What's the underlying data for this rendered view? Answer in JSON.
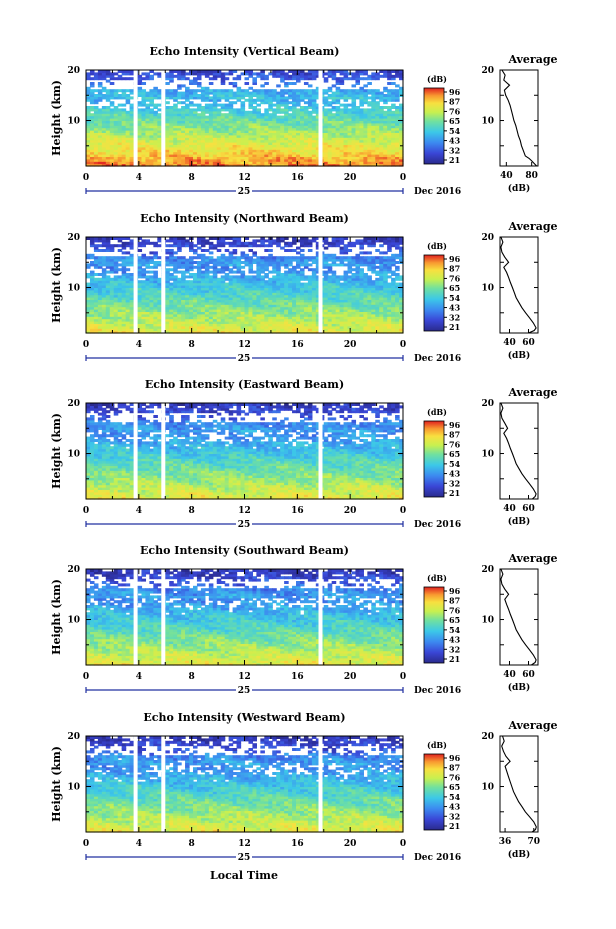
{
  "figure": {
    "x_axis_label": "Local Time",
    "date_label": "Dec 2016",
    "day_label": "25",
    "y_axis_label": "Height (km)",
    "colorbar_unit": "(dB)",
    "average_title": "Average",
    "average_xlabel": "(dB)"
  },
  "chart_data": [
    {
      "type": "heatmap",
      "title": "Echo Intensity (Vertical Beam)",
      "x_ticks": [
        "0",
        "4",
        "8",
        "12",
        "16",
        "20",
        "0"
      ],
      "x_range_hours": [
        0,
        24
      ],
      "y_ticks": [
        "10",
        "20"
      ],
      "y_range_km": [
        1,
        20
      ],
      "colorbar_ticks": [
        "96",
        "87",
        "76",
        "65",
        "54",
        "43",
        "32",
        "21"
      ],
      "colorbar_range_db": [
        21,
        96
      ],
      "data_gaps_hours": [
        3.6,
        5.7,
        17.6
      ],
      "profile": {
        "title": "Average",
        "x_ticks": [
          "40",
          "80"
        ],
        "x_range_db": [
          30,
          90
        ],
        "xlabel": "(dB)",
        "y_ticks": [
          "10",
          "20"
        ],
        "height_km": [
          1,
          1.5,
          2,
          2.5,
          3,
          4,
          5,
          6,
          7,
          8,
          9,
          10,
          11,
          12,
          13,
          14,
          15,
          16,
          17,
          18,
          19,
          20
        ],
        "values_db": [
          88,
          84,
          80,
          76,
          70,
          67,
          64,
          62,
          59,
          57,
          55,
          52,
          50,
          48,
          46,
          43,
          39,
          37,
          45,
          36,
          38,
          33
        ]
      }
    },
    {
      "type": "heatmap",
      "title": "Echo Intensity (Northward Beam)",
      "x_ticks": [
        "0",
        "4",
        "8",
        "12",
        "16",
        "20",
        "0"
      ],
      "x_range_hours": [
        0,
        24
      ],
      "y_ticks": [
        "10",
        "20"
      ],
      "y_range_km": [
        1,
        20
      ],
      "colorbar_ticks": [
        "96",
        "87",
        "76",
        "65",
        "54",
        "43",
        "32",
        "21"
      ],
      "colorbar_range_db": [
        21,
        96
      ],
      "data_gaps_hours": [
        3.6,
        5.7,
        17.6
      ],
      "profile": {
        "title": "Average",
        "x_ticks": [
          "40",
          "60"
        ],
        "x_range_db": [
          30,
          70
        ],
        "xlabel": "(dB)",
        "y_ticks": [
          "10",
          "20"
        ],
        "height_km": [
          1,
          1.5,
          2,
          3,
          4,
          5,
          6,
          7,
          8,
          9,
          10,
          11,
          12,
          13,
          14,
          15,
          16,
          17,
          18,
          19,
          20
        ],
        "values_db": [
          60,
          66,
          68,
          65,
          61,
          57,
          53,
          50,
          47,
          45,
          43,
          41,
          39,
          37,
          34,
          39,
          35,
          32,
          31,
          33,
          31
        ]
      }
    },
    {
      "type": "heatmap",
      "title": "Echo Intensity (Eastward Beam)",
      "x_ticks": [
        "0",
        "4",
        "8",
        "12",
        "16",
        "20",
        "0"
      ],
      "x_range_hours": [
        0,
        24
      ],
      "y_ticks": [
        "10",
        "20"
      ],
      "y_range_km": [
        1,
        20
      ],
      "colorbar_ticks": [
        "96",
        "87",
        "76",
        "65",
        "54",
        "43",
        "32",
        "21"
      ],
      "colorbar_range_db": [
        21,
        96
      ],
      "data_gaps_hours": [
        3.6,
        5.7,
        17.6
      ],
      "profile": {
        "title": "Average",
        "x_ticks": [
          "40",
          "60"
        ],
        "x_range_db": [
          30,
          70
        ],
        "xlabel": "(dB)",
        "y_ticks": [
          "10",
          "20"
        ],
        "height_km": [
          1,
          1.5,
          2,
          3,
          4,
          5,
          6,
          7,
          8,
          9,
          10,
          11,
          12,
          13,
          14,
          15,
          16,
          17,
          18,
          19,
          20
        ],
        "values_db": [
          64,
          67,
          68,
          65,
          61,
          57,
          53,
          50,
          47,
          45,
          43,
          41,
          39,
          37,
          34,
          38,
          35,
          32,
          31,
          33,
          31
        ]
      }
    },
    {
      "type": "heatmap",
      "title": "Echo Intensity (Southward Beam)",
      "x_ticks": [
        "0",
        "4",
        "8",
        "12",
        "16",
        "20",
        "0"
      ],
      "x_range_hours": [
        0,
        24
      ],
      "y_ticks": [
        "10",
        "20"
      ],
      "y_range_km": [
        1,
        20
      ],
      "colorbar_ticks": [
        "96",
        "87",
        "76",
        "65",
        "54",
        "43",
        "32",
        "21"
      ],
      "colorbar_range_db": [
        21,
        96
      ],
      "data_gaps_hours": [
        3.6,
        5.7,
        17.6
      ],
      "profile": {
        "title": "Average",
        "x_ticks": [
          "40",
          "60"
        ],
        "x_range_db": [
          30,
          70
        ],
        "xlabel": "(dB)",
        "y_ticks": [
          "10",
          "20"
        ],
        "height_km": [
          1,
          1.5,
          2,
          3,
          4,
          5,
          6,
          7,
          8,
          9,
          10,
          11,
          12,
          13,
          14,
          15,
          16,
          17,
          18,
          19,
          20
        ],
        "values_db": [
          63,
          67,
          68,
          65,
          61,
          57,
          53,
          50,
          47,
          45,
          43,
          41,
          39,
          37,
          35,
          39,
          35,
          32,
          31,
          33,
          31
        ]
      }
    },
    {
      "type": "heatmap",
      "title": "Echo Intensity (Westward Beam)",
      "x_ticks": [
        "0",
        "4",
        "8",
        "12",
        "16",
        "20",
        "0"
      ],
      "x_range_hours": [
        0,
        24
      ],
      "y_ticks": [
        "10",
        "20"
      ],
      "y_range_km": [
        1,
        20
      ],
      "colorbar_ticks": [
        "96",
        "87",
        "76",
        "65",
        "54",
        "43",
        "32",
        "21"
      ],
      "colorbar_range_db": [
        21,
        96
      ],
      "data_gaps_hours": [
        3.6,
        5.7,
        17.6
      ],
      "profile": {
        "title": "Average",
        "x_ticks": [
          "36",
          "70"
        ],
        "x_range_db": [
          30,
          75
        ],
        "xlabel": "(dB)",
        "y_ticks": [
          "10",
          "20"
        ],
        "height_km": [
          1,
          1.5,
          2,
          3,
          4,
          5,
          6,
          7,
          8,
          9,
          10,
          11,
          12,
          13,
          14,
          15,
          16,
          17,
          18,
          19,
          20
        ],
        "values_db": [
          68,
          72,
          73,
          70,
          65,
          60,
          56,
          52,
          49,
          46,
          44,
          42,
          40,
          38,
          36,
          42,
          37,
          34,
          32,
          35,
          33
        ]
      }
    }
  ]
}
